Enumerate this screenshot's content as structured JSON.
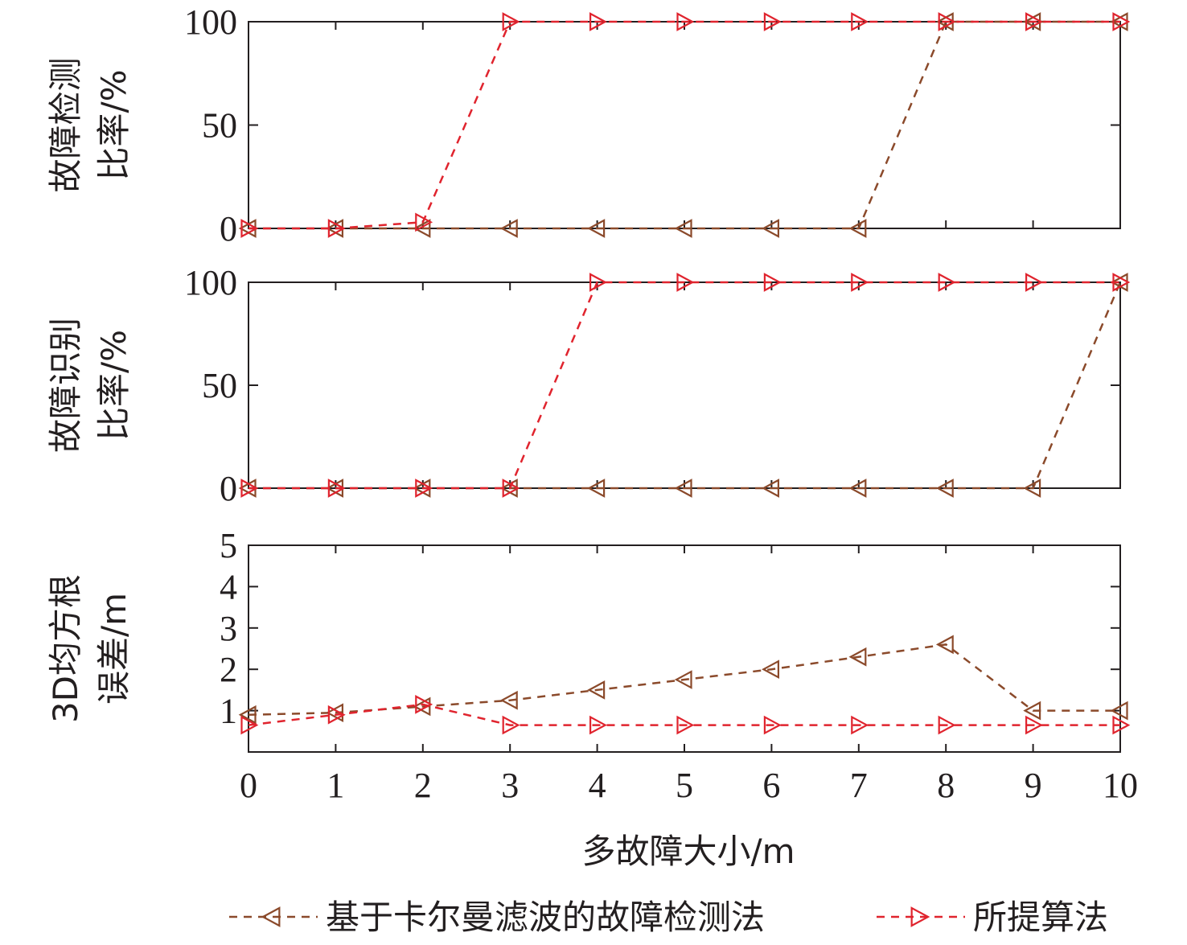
{
  "chart_data": [
    {
      "type": "line",
      "ylabel_lines": [
        "故障检测",
        "比率/%"
      ],
      "ylim": [
        0,
        100
      ],
      "yticks": [
        0,
        50,
        100
      ],
      "xlim": [
        0,
        10
      ],
      "x": [
        0,
        1,
        2,
        3,
        4,
        5,
        6,
        7,
        8,
        9,
        10
      ],
      "series": [
        {
          "name": "基于卡尔曼滤波的故障检测法",
          "marker": "triangle-left",
          "color": "#8b4a2b",
          "values": [
            0,
            0,
            0,
            0,
            0,
            0,
            0,
            0,
            100,
            100,
            100
          ]
        },
        {
          "name": "所提算法",
          "marker": "triangle-right",
          "color": "#e0242e",
          "values": [
            0,
            0,
            3,
            100,
            100,
            100,
            100,
            100,
            100,
            100,
            100
          ]
        }
      ]
    },
    {
      "type": "line",
      "ylabel_lines": [
        "故障识别",
        "比率/%"
      ],
      "ylim": [
        0,
        100
      ],
      "yticks": [
        0,
        50,
        100
      ],
      "xlim": [
        0,
        10
      ],
      "x": [
        0,
        1,
        2,
        3,
        4,
        5,
        6,
        7,
        8,
        9,
        10
      ],
      "series": [
        {
          "name": "基于卡尔曼滤波的故障检测法",
          "marker": "triangle-left",
          "color": "#8b4a2b",
          "values": [
            0,
            0,
            0,
            0,
            0,
            0,
            0,
            0,
            0,
            0,
            100
          ]
        },
        {
          "name": "所提算法",
          "marker": "triangle-right",
          "color": "#e0242e",
          "values": [
            0,
            0,
            0,
            0,
            100,
            100,
            100,
            100,
            100,
            100,
            100
          ]
        }
      ]
    },
    {
      "type": "line",
      "ylabel_lines": [
        "3D均方根",
        "误差/m"
      ],
      "ylim": [
        0,
        5
      ],
      "yticks": [
        1,
        2,
        3,
        4,
        5
      ],
      "xlim": [
        0,
        10
      ],
      "xticks": [
        0,
        1,
        2,
        3,
        4,
        5,
        6,
        7,
        8,
        9,
        10
      ],
      "xlabel": "多故障大小/m",
      "x": [
        0,
        1,
        2,
        3,
        4,
        5,
        6,
        7,
        8,
        9,
        10
      ],
      "series": [
        {
          "name": "基于卡尔曼滤波的故障检测法",
          "marker": "triangle-left",
          "color": "#8b4a2b",
          "values": [
            0.9,
            0.95,
            1.1,
            1.25,
            1.5,
            1.75,
            2.0,
            2.3,
            2.6,
            1.0,
            1.0
          ]
        },
        {
          "name": "所提算法",
          "marker": "triangle-right",
          "color": "#e0242e",
          "values": [
            0.65,
            0.9,
            1.15,
            0.65,
            0.65,
            0.65,
            0.65,
            0.65,
            0.65,
            0.65,
            0.65
          ]
        }
      ]
    }
  ],
  "legend": {
    "placement": "bottom",
    "items": [
      {
        "label": "基于卡尔曼滤波的故障检测法",
        "marker": "triangle-left",
        "color": "#8b4a2b"
      },
      {
        "label": "所提算法",
        "marker": "triangle-right",
        "color": "#e0242e"
      }
    ]
  }
}
